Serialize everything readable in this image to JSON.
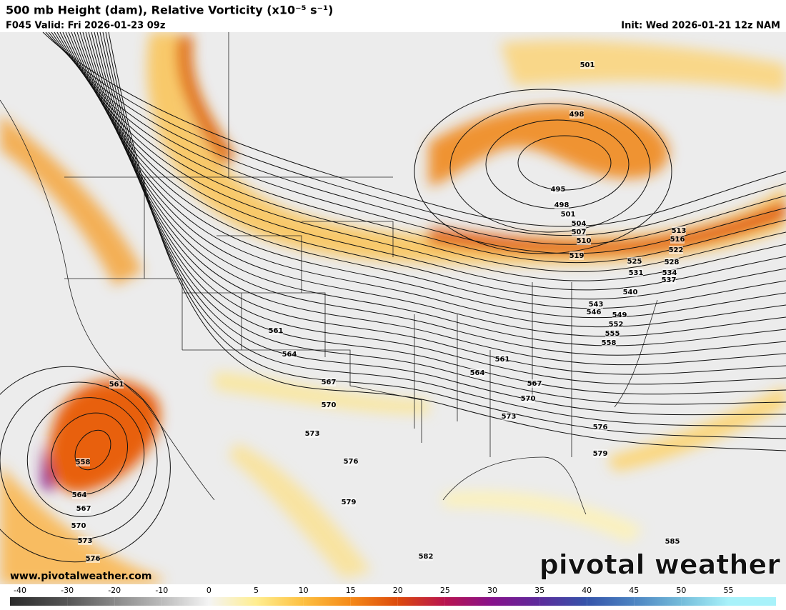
{
  "header": {
    "title": "500 mb Height (dam), Relative Vorticity (x10⁻⁵ s⁻¹)",
    "valid": "F045 Valid: Fri 2026-01-23 09z",
    "init": "Init: Wed 2026-01-21 12z NAM"
  },
  "map": {
    "contour_labels": [
      "501",
      "498",
      "495",
      "498",
      "501",
      "504",
      "507",
      "510",
      "513",
      "516",
      "522",
      "519",
      "525",
      "528",
      "531",
      "534",
      "537",
      "540",
      "543",
      "546",
      "549",
      "552",
      "555",
      "558",
      "561",
      "564",
      "561",
      "564",
      "567",
      "567",
      "570",
      "570",
      "573",
      "573",
      "576",
      "576",
      "579",
      "579",
      "582",
      "585",
      "561",
      "558",
      "564",
      "567",
      "570",
      "573",
      "576"
    ],
    "website": "www.pivotalweather.com",
    "logo": "pivotal weather"
  },
  "colorbar": {
    "ticks": [
      -40,
      -30,
      -20,
      -10,
      0,
      5,
      10,
      15,
      20,
      25,
      30,
      35,
      40,
      45,
      50,
      55
    ],
    "colors": [
      "#2b2b2b",
      "#555555",
      "#888888",
      "#bbbbbb",
      "#f4f4f4",
      "#ffee90",
      "#fdc040",
      "#f58a18",
      "#dc4a0c",
      "#b81450",
      "#86128c",
      "#5c2c9c",
      "#3454aa",
      "#4c84c2",
      "#74bcda",
      "#a8f2fa"
    ]
  }
}
